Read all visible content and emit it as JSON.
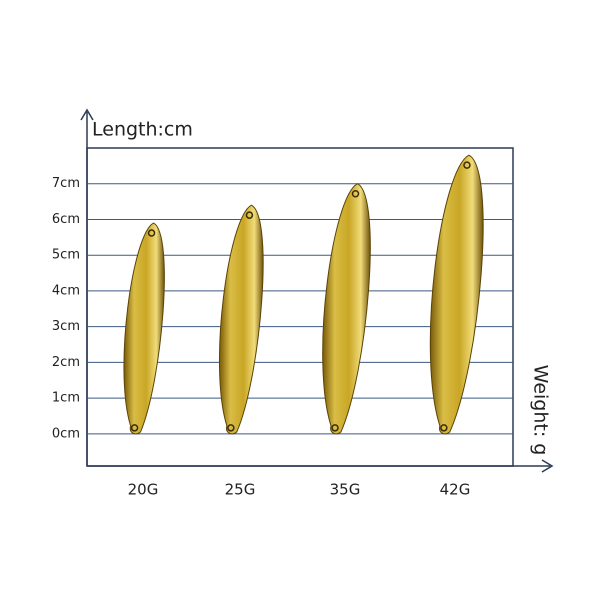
{
  "chart_data": {
    "type": "bar",
    "y_label": "Length:cm",
    "x_label": "Weight: g",
    "categories": [
      "20G",
      "25G",
      "35G",
      "42G"
    ],
    "values": [
      5.9,
      6.4,
      7.0,
      7.8
    ],
    "ylim": [
      -0.9,
      8
    ],
    "yticks": [
      {
        "value": 0,
        "label": "0cm"
      },
      {
        "value": 1,
        "label": "1cm"
      },
      {
        "value": 2,
        "label": "2cm"
      },
      {
        "value": 3,
        "label": "3cm"
      },
      {
        "value": 4,
        "label": "4cm"
      },
      {
        "value": 5,
        "label": "5cm"
      },
      {
        "value": 6,
        "label": "6cm"
      },
      {
        "value": 7,
        "label": "7cm"
      }
    ],
    "grid": true,
    "color": "#c9a625"
  }
}
